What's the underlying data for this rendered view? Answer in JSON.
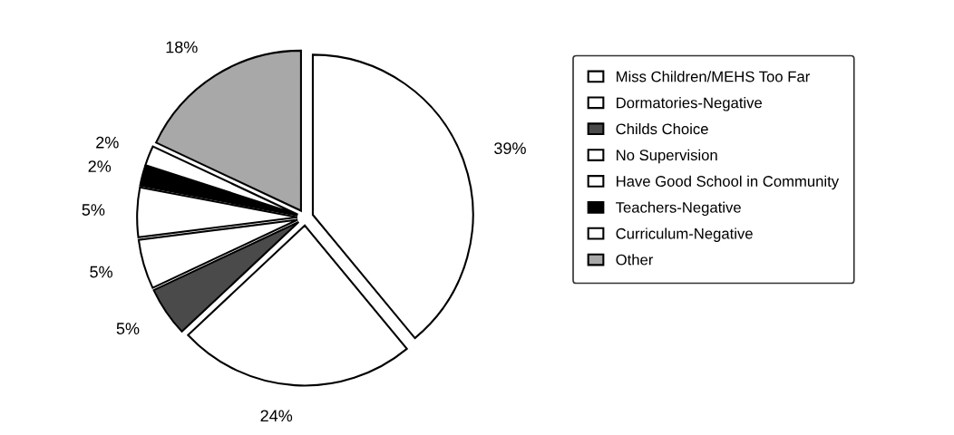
{
  "chart_data": {
    "type": "pie",
    "categories": [
      "Miss Children/MEHS Too Far",
      "Dormatories-Negative",
      "Childs Choice",
      "No Supervision",
      "Have Good School in Community",
      "Teachers-Negative",
      "Curriculum-Negative",
      "Other"
    ],
    "values": [
      39,
      24,
      5,
      5,
      5,
      2,
      2,
      18
    ],
    "value_labels": [
      "39%",
      "24%",
      "5%",
      "5%",
      "5%",
      "2%",
      "2%",
      "18%"
    ],
    "colors": [
      "#ffffff",
      "#ffffff",
      "#4a4a4a",
      "#ffffff",
      "#ffffff",
      "#000000",
      "#ffffff",
      "#a8a8a8"
    ],
    "legend": "right"
  }
}
